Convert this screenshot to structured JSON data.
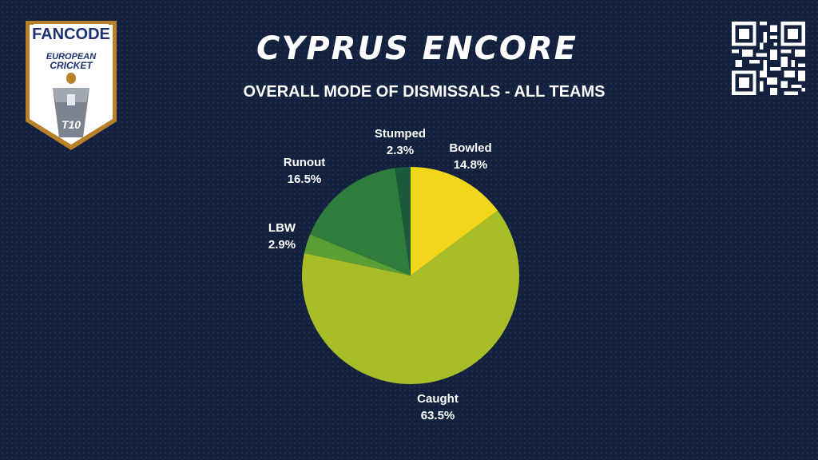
{
  "header": {
    "title": "CYPRUS ENCORE",
    "subtitle": "OVERALL MODE OF DISMISSALS - ALL TEAMS"
  },
  "logo": {
    "brand": "FANCODE",
    "line1": "EUROPEAN",
    "line2": "CRICKET",
    "badge": "T10"
  },
  "qr_icon": "qr-code-icon",
  "chart_data": {
    "type": "pie",
    "title": "OVERALL MODE OF DISMISSALS - ALL TEAMS",
    "slices": [
      {
        "name": "Bowled",
        "value": 14.8,
        "label": "14.8%",
        "color": "#f2d61c"
      },
      {
        "name": "Caught",
        "value": 63.5,
        "label": "63.5%",
        "color": "#a8bd28"
      },
      {
        "name": "LBW",
        "value": 2.9,
        "label": "2.9%",
        "color": "#5a9e34"
      },
      {
        "name": "Runout",
        "value": 16.5,
        "label": "16.5%",
        "color": "#2e7d3c"
      },
      {
        "name": "Stumped",
        "value": 2.3,
        "label": "2.3%",
        "color": "#1b5a3a"
      }
    ]
  }
}
